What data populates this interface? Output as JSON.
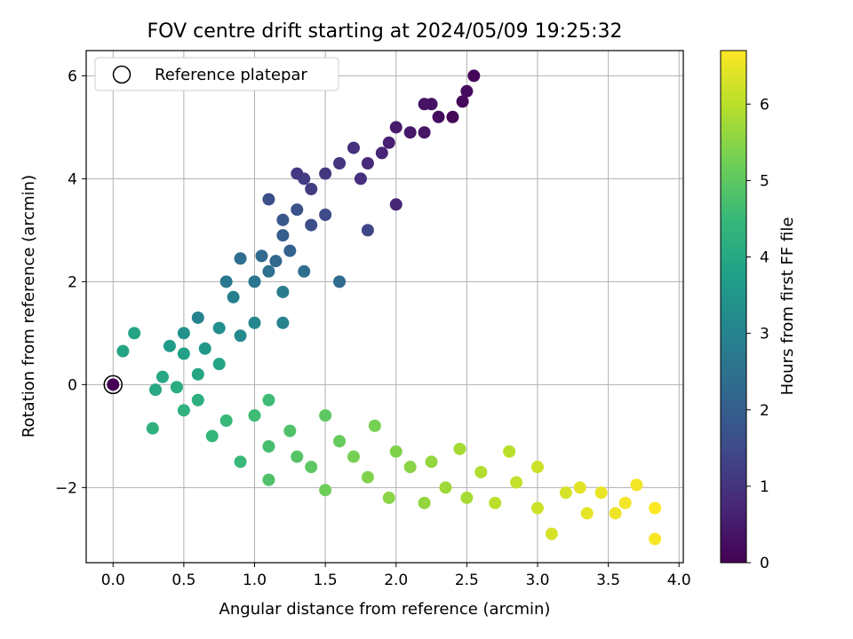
{
  "chart_data": {
    "type": "scatter",
    "title": "FOV centre drift starting at 2024/05/09 19:25:32",
    "xlabel": "Angular distance from reference (arcmin)",
    "ylabel": "Rotation from reference (arcmin)",
    "xlim": [
      -0.19,
      4.03
    ],
    "ylim": [
      -3.46,
      6.49
    ],
    "xticks": [
      "0.0",
      "0.5",
      "1.0",
      "1.5",
      "2.0",
      "2.5",
      "3.0",
      "3.5",
      "4.0"
    ],
    "yticks": [
      "−2",
      "0",
      "2",
      "4",
      "6"
    ],
    "grid": true,
    "legend": {
      "placement": "upper-left",
      "entries": [
        "Reference platepar"
      ]
    },
    "reference_point": {
      "x": 0.0,
      "y": 0.0
    },
    "colorbar": {
      "label": "Hours from first FF file",
      "range": [
        0,
        6.7
      ],
      "ticks": [
        "0",
        "1",
        "2",
        "3",
        "4",
        "5",
        "6"
      ],
      "colormap": "viridis",
      "colors": [
        "#440154",
        "#482878",
        "#3e4a89",
        "#31688e",
        "#26828e",
        "#1f9e89",
        "#35b779",
        "#6ece58",
        "#b5de2b",
        "#fde725"
      ]
    },
    "clusters": {
      "description": "points colored by hours; early points (0-4h) form an upward trend, later points (4-6.7h) trend downward",
      "upper_branch": [
        {
          "x": 2.55,
          "y": 6.0,
          "t": 0.1
        },
        {
          "x": 2.5,
          "y": 5.7,
          "t": 0.2
        },
        {
          "x": 2.47,
          "y": 5.5,
          "t": 0.15
        },
        {
          "x": 2.4,
          "y": 5.2,
          "t": 0.1
        },
        {
          "x": 2.3,
          "y": 5.2,
          "t": 0.2
        },
        {
          "x": 2.25,
          "y": 5.45,
          "t": 0.3
        },
        {
          "x": 2.2,
          "y": 5.45,
          "t": 0.35
        },
        {
          "x": 2.2,
          "y": 4.9,
          "t": 0.4
        },
        {
          "x": 2.1,
          "y": 4.9,
          "t": 0.45
        },
        {
          "x": 2.0,
          "y": 5.0,
          "t": 0.5
        },
        {
          "x": 1.95,
          "y": 4.7,
          "t": 0.6
        },
        {
          "x": 1.9,
          "y": 4.5,
          "t": 0.7
        },
        {
          "x": 2.0,
          "y": 3.5,
          "t": 0.7
        },
        {
          "x": 1.8,
          "y": 4.3,
          "t": 0.8
        },
        {
          "x": 1.75,
          "y": 4.0,
          "t": 0.9
        },
        {
          "x": 1.7,
          "y": 4.6,
          "t": 0.95
        },
        {
          "x": 1.6,
          "y": 4.3,
          "t": 1.0
        },
        {
          "x": 1.5,
          "y": 4.1,
          "t": 1.1
        },
        {
          "x": 1.4,
          "y": 3.8,
          "t": 1.2
        },
        {
          "x": 1.35,
          "y": 4.0,
          "t": 1.2
        },
        {
          "x": 1.3,
          "y": 4.1,
          "t": 1.1
        },
        {
          "x": 1.8,
          "y": 3.0,
          "t": 1.4
        },
        {
          "x": 1.5,
          "y": 3.3,
          "t": 1.5
        },
        {
          "x": 1.4,
          "y": 3.1,
          "t": 1.6
        },
        {
          "x": 1.3,
          "y": 3.4,
          "t": 1.7
        },
        {
          "x": 1.2,
          "y": 3.2,
          "t": 1.8
        },
        {
          "x": 1.1,
          "y": 3.6,
          "t": 1.6
        },
        {
          "x": 1.2,
          "y": 2.9,
          "t": 2.0
        },
        {
          "x": 1.25,
          "y": 2.6,
          "t": 2.1
        },
        {
          "x": 1.15,
          "y": 2.4,
          "t": 2.2
        },
        {
          "x": 1.05,
          "y": 2.5,
          "t": 2.3
        },
        {
          "x": 0.9,
          "y": 2.45,
          "t": 2.4
        },
        {
          "x": 1.6,
          "y": 2.0,
          "t": 2.3
        },
        {
          "x": 1.35,
          "y": 2.2,
          "t": 2.4
        },
        {
          "x": 1.1,
          "y": 2.2,
          "t": 2.5
        },
        {
          "x": 1.0,
          "y": 2.0,
          "t": 2.6
        },
        {
          "x": 0.8,
          "y": 2.0,
          "t": 2.7
        },
        {
          "x": 1.2,
          "y": 1.8,
          "t": 2.8
        },
        {
          "x": 0.85,
          "y": 1.7,
          "t": 2.9
        },
        {
          "x": 0.6,
          "y": 1.3,
          "t": 3.0
        },
        {
          "x": 1.2,
          "y": 1.2,
          "t": 3.0
        },
        {
          "x": 1.0,
          "y": 1.2,
          "t": 3.1
        },
        {
          "x": 0.75,
          "y": 1.1,
          "t": 3.3
        },
        {
          "x": 0.9,
          "y": 0.95,
          "t": 3.2
        },
        {
          "x": 0.5,
          "y": 1.0,
          "t": 3.4
        },
        {
          "x": 0.65,
          "y": 0.7,
          "t": 3.6
        },
        {
          "x": 0.4,
          "y": 0.75,
          "t": 3.7
        },
        {
          "x": 0.15,
          "y": 1.0,
          "t": 3.9
        },
        {
          "x": 0.07,
          "y": 0.65,
          "t": 3.9
        },
        {
          "x": 0.5,
          "y": 0.6,
          "t": 3.8
        },
        {
          "x": 0.75,
          "y": 0.4,
          "t": 3.9
        },
        {
          "x": 0.6,
          "y": 0.2,
          "t": 3.95
        },
        {
          "x": 0.35,
          "y": 0.15,
          "t": 4.0
        }
      ],
      "lower_branch": [
        {
          "x": 0.3,
          "y": -0.1,
          "t": 4.0
        },
        {
          "x": 0.45,
          "y": -0.05,
          "t": 4.1
        },
        {
          "x": 0.6,
          "y": -0.3,
          "t": 4.2
        },
        {
          "x": 0.5,
          "y": -0.5,
          "t": 4.3
        },
        {
          "x": 0.28,
          "y": -0.85,
          "t": 4.3
        },
        {
          "x": 0.7,
          "y": -1.0,
          "t": 4.4
        },
        {
          "x": 0.8,
          "y": -0.7,
          "t": 4.5
        },
        {
          "x": 0.9,
          "y": -1.5,
          "t": 4.5
        },
        {
          "x": 1.0,
          "y": -0.6,
          "t": 4.6
        },
        {
          "x": 1.1,
          "y": -0.3,
          "t": 4.6
        },
        {
          "x": 1.1,
          "y": -1.2,
          "t": 4.7
        },
        {
          "x": 1.25,
          "y": -0.9,
          "t": 4.8
        },
        {
          "x": 1.1,
          "y": -1.85,
          "t": 4.8
        },
        {
          "x": 1.3,
          "y": -1.4,
          "t": 4.9
        },
        {
          "x": 1.5,
          "y": -0.6,
          "t": 5.0
        },
        {
          "x": 1.4,
          "y": -1.6,
          "t": 5.0
        },
        {
          "x": 1.6,
          "y": -1.1,
          "t": 5.1
        },
        {
          "x": 1.5,
          "y": -2.05,
          "t": 5.2
        },
        {
          "x": 1.7,
          "y": -1.4,
          "t": 5.3
        },
        {
          "x": 1.85,
          "y": -0.8,
          "t": 5.3
        },
        {
          "x": 1.8,
          "y": -1.8,
          "t": 5.4
        },
        {
          "x": 2.0,
          "y": -1.3,
          "t": 5.4
        },
        {
          "x": 1.95,
          "y": -2.2,
          "t": 5.5
        },
        {
          "x": 2.1,
          "y": -1.6,
          "t": 5.5
        },
        {
          "x": 2.2,
          "y": -2.3,
          "t": 5.6
        },
        {
          "x": 2.25,
          "y": -1.5,
          "t": 5.6
        },
        {
          "x": 2.35,
          "y": -2.0,
          "t": 5.7
        },
        {
          "x": 2.45,
          "y": -1.25,
          "t": 5.8
        },
        {
          "x": 2.5,
          "y": -2.2,
          "t": 5.8
        },
        {
          "x": 2.6,
          "y": -1.7,
          "t": 5.9
        },
        {
          "x": 2.7,
          "y": -2.3,
          "t": 6.0
        },
        {
          "x": 2.8,
          "y": -1.3,
          "t": 6.0
        },
        {
          "x": 2.85,
          "y": -1.9,
          "t": 6.1
        },
        {
          "x": 3.0,
          "y": -2.4,
          "t": 6.2
        },
        {
          "x": 3.0,
          "y": -1.6,
          "t": 6.2
        },
        {
          "x": 3.1,
          "y": -2.9,
          "t": 6.3
        },
        {
          "x": 3.2,
          "y": -2.1,
          "t": 6.3
        },
        {
          "x": 3.3,
          "y": -2.0,
          "t": 6.4
        },
        {
          "x": 3.35,
          "y": -2.5,
          "t": 6.45
        },
        {
          "x": 3.45,
          "y": -2.1,
          "t": 6.5
        },
        {
          "x": 3.55,
          "y": -2.5,
          "t": 6.55
        },
        {
          "x": 3.62,
          "y": -2.3,
          "t": 6.6
        },
        {
          "x": 3.7,
          "y": -1.95,
          "t": 6.6
        },
        {
          "x": 3.83,
          "y": -3.0,
          "t": 6.65
        },
        {
          "x": 3.83,
          "y": -2.4,
          "t": 6.7
        }
      ]
    }
  }
}
